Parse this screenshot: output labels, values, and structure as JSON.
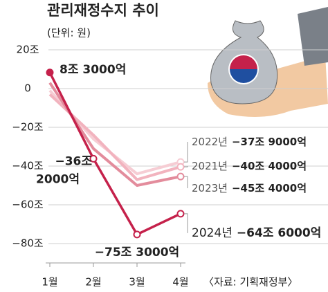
{
  "chart_data": {
    "type": "line",
    "title": "관리재정수지 추이",
    "subtitle": "(단위: 원)",
    "source": "〈자료: 기획재정부〉",
    "categories": [
      "1월",
      "2월",
      "3월",
      "4월"
    ],
    "ylim": [
      -90,
      20
    ],
    "yticks": [
      {
        "value": 20,
        "label": "20조"
      },
      0,
      {
        "value": -20,
        "label": "−20조"
      },
      {
        "value": -40,
        "label": "−40조"
      },
      {
        "value": -60,
        "label": "−60조"
      },
      {
        "value": -80,
        "label": "−80조"
      }
    ],
    "grid": true,
    "series": [
      {
        "name": "2022년",
        "color": "#f6cdd4",
        "values": [
          -1,
          -26,
          -44,
          -37.9
        ],
        "value_labels": [
          null,
          null,
          null,
          "−37조 9000억"
        ]
      },
      {
        "name": "2021년",
        "color": "#f2b3be",
        "values": [
          -3,
          -24,
          -47,
          -40.4
        ],
        "value_labels": [
          null,
          null,
          null,
          "−40조 4000억"
        ]
      },
      {
        "name": "2023년",
        "color": "#e38c9c",
        "values": [
          3,
          -31,
          -50,
          -45.4
        ],
        "value_labels": [
          null,
          null,
          null,
          "−45조 4000억"
        ]
      },
      {
        "name": "2024년",
        "color": "#c5214b",
        "values": [
          8.3,
          -36.2,
          -75.3,
          -64.6
        ],
        "value_labels": [
          "8조 3000억",
          "−36조 2000억",
          "−75조 3000억",
          "−64조 6000억"
        ]
      }
    ]
  }
}
